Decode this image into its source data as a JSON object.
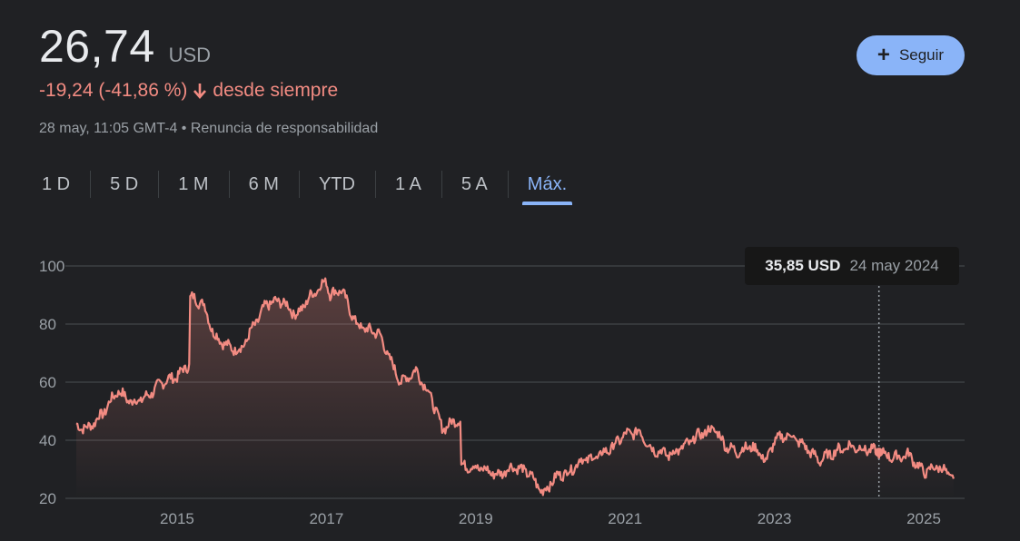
{
  "quote": {
    "price": "26,74",
    "currency": "USD",
    "change": "-19,24 (-41,86 %)",
    "change_suffix": "desde siempre",
    "timestamp": "28 may, 11:05 GMT-4 • Renuncia de responsabilidad",
    "down_color": "#f28b82"
  },
  "follow_label": "Seguir",
  "tabs": [
    "1 D",
    "5 D",
    "1 M",
    "6 M",
    "YTD",
    "1 A",
    "5 A",
    "Máx."
  ],
  "active_tab": "Máx.",
  "tooltip": {
    "value": "35,85 USD",
    "date": "24 may 2024"
  },
  "chart_data": {
    "type": "area",
    "ylim": [
      20,
      100
    ],
    "yticks": [
      20,
      40,
      60,
      80,
      100
    ],
    "xlim": [
      2013.65,
      2025.45
    ],
    "xticks": [
      2015,
      2017,
      2019,
      2021,
      2023,
      2025
    ],
    "grid": true,
    "line_color": "#f28b82",
    "x": [
      2013.65,
      2013.8,
      2014.0,
      2014.2,
      2014.4,
      2014.6,
      2014.8,
      2015.0,
      2015.15,
      2015.2,
      2015.35,
      2015.5,
      2015.7,
      2015.85,
      2016.0,
      2016.2,
      2016.4,
      2016.6,
      2016.8,
      2017.0,
      2017.05,
      2017.2,
      2017.4,
      2017.55,
      2017.7,
      2017.9,
      2018.0,
      2018.2,
      2018.4,
      2018.55,
      2018.75,
      2018.85,
      2018.95,
      2019.1,
      2019.3,
      2019.5,
      2019.7,
      2019.9,
      2020.1,
      2020.25,
      2020.4,
      2020.6,
      2020.8,
      2021.0,
      2021.2,
      2021.35,
      2021.6,
      2021.8,
      2022.0,
      2022.2,
      2022.35,
      2022.5,
      2022.7,
      2022.9,
      2023.0,
      2023.2,
      2023.4,
      2023.6,
      2023.8,
      2024.0,
      2024.2,
      2024.4,
      2024.6,
      2024.8,
      2025.0,
      2025.2,
      2025.4
    ],
    "y": [
      45,
      44,
      49,
      57,
      53,
      55,
      60,
      62,
      66,
      89,
      87,
      76,
      72,
      71,
      78,
      87,
      88,
      83,
      90,
      95,
      90,
      92,
      80,
      78,
      77,
      65,
      60,
      64,
      55,
      44,
      47,
      31,
      31,
      30,
      28,
      31,
      29,
      22,
      28,
      29,
      33,
      34,
      37,
      42,
      43,
      37,
      35,
      38,
      42,
      44,
      38,
      36,
      38,
      33,
      40,
      42,
      38,
      33,
      36,
      38,
      37,
      36,
      34,
      35,
      29,
      31,
      26.74
    ]
  }
}
